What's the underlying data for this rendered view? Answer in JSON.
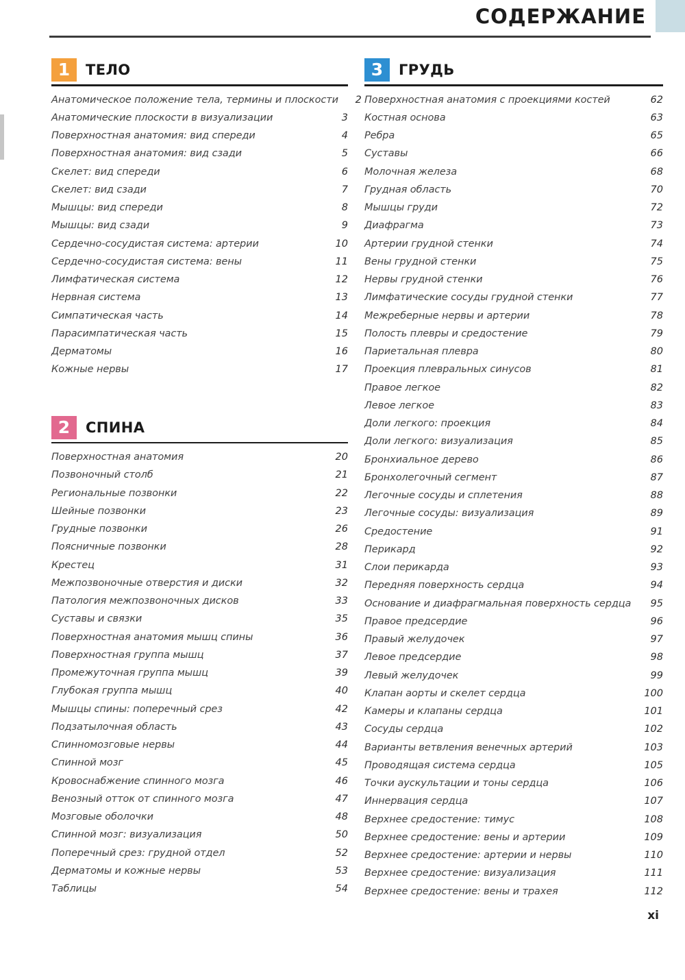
{
  "page": {
    "title": "СОДЕРЖАНИЕ",
    "folio": "xi"
  },
  "colors": {
    "corner_block": "#c9dde4",
    "section1_badge": "#f4a03d",
    "section2_badge": "#e2698f",
    "section3_badge": "#2d8fd2"
  },
  "sections": [
    {
      "number": "1",
      "title": "ТЕЛО",
      "badge_color": "#f4a03d",
      "entries": [
        {
          "label": "Анатомическое положение тела, термины и плоскости",
          "page": "2"
        },
        {
          "label": "Анатомические плоскости в визуализации",
          "page": "3"
        },
        {
          "label": "Поверхностная анатомия: вид спереди",
          "page": "4"
        },
        {
          "label": "Поверхностная анатомия: вид сзади",
          "page": "5"
        },
        {
          "label": "Скелет: вид спереди",
          "page": "6"
        },
        {
          "label": "Скелет: вид сзади",
          "page": "7"
        },
        {
          "label": "Мышцы: вид спереди",
          "page": "8"
        },
        {
          "label": "Мышцы: вид сзади",
          "page": "9"
        },
        {
          "label": "Сердечно-сосудистая система: артерии",
          "page": "10"
        },
        {
          "label": "Сердечно-сосудистая система: вены",
          "page": "11"
        },
        {
          "label": "Лимфатическая система",
          "page": "12"
        },
        {
          "label": "Нервная система",
          "page": "13"
        },
        {
          "label": "Симпатическая часть",
          "page": "14"
        },
        {
          "label": "Парасимпатическая часть",
          "page": "15"
        },
        {
          "label": "Дерматомы",
          "page": "16"
        },
        {
          "label": "Кожные нервы",
          "page": "17"
        }
      ]
    },
    {
      "number": "2",
      "title": "СПИНА",
      "badge_color": "#e2698f",
      "entries": [
        {
          "label": "Поверхностная анатомия",
          "page": "20"
        },
        {
          "label": "Позвоночный столб",
          "page": "21"
        },
        {
          "label": "Региональные позвонки",
          "page": "22"
        },
        {
          "label": "Шейные позвонки",
          "page": "23"
        },
        {
          "label": "Грудные позвонки",
          "page": "26"
        },
        {
          "label": "Поясничные позвонки",
          "page": "28"
        },
        {
          "label": "Крестец",
          "page": "31"
        },
        {
          "label": "Межпозвоночные отверстия и диски",
          "page": "32"
        },
        {
          "label": "Патология межпозвоночных дисков",
          "page": "33"
        },
        {
          "label": "Суставы и связки",
          "page": "35"
        },
        {
          "label": "Поверхностная анатомия мышц спины",
          "page": "36"
        },
        {
          "label": "Поверхностная группа мышц",
          "page": "37"
        },
        {
          "label": "Промежуточная группа мышц",
          "page": "39"
        },
        {
          "label": "Глубокая группа мышц",
          "page": "40"
        },
        {
          "label": "Мышцы спины: поперечный срез",
          "page": "42"
        },
        {
          "label": "Подзатылочная область",
          "page": "43"
        },
        {
          "label": "Спинномозговые нервы",
          "page": "44"
        },
        {
          "label": "Спинной мозг",
          "page": "45"
        },
        {
          "label": "Кровоснабжение спинного мозга",
          "page": "46"
        },
        {
          "label": "Венозный отток от спинного мозга",
          "page": "47"
        },
        {
          "label": "Мозговые оболочки",
          "page": "48"
        },
        {
          "label": "Спинной мозг: визуализация",
          "page": "50"
        },
        {
          "label": "Поперечный срез: грудной отдел",
          "page": "52"
        },
        {
          "label": "Дерматомы и кожные нервы",
          "page": "53"
        },
        {
          "label": "Таблицы",
          "page": "54"
        }
      ]
    },
    {
      "number": "3",
      "title": "ГРУДЬ",
      "badge_color": "#2d8fd2",
      "entries": [
        {
          "label": "Поверхностная анатомия с проекциями костей",
          "page": "62"
        },
        {
          "label": "Костная основа",
          "page": "63"
        },
        {
          "label": "Ребра",
          "page": "65"
        },
        {
          "label": "Суставы",
          "page": "66"
        },
        {
          "label": "Молочная железа",
          "page": "68"
        },
        {
          "label": "Грудная область",
          "page": "70"
        },
        {
          "label": "Мышцы груди",
          "page": "72"
        },
        {
          "label": "Диафрагма",
          "page": "73"
        },
        {
          "label": "Артерии грудной стенки",
          "page": "74"
        },
        {
          "label": "Вены грудной стенки",
          "page": "75"
        },
        {
          "label": "Нервы грудной стенки",
          "page": "76"
        },
        {
          "label": "Лимфатические сосуды грудной стенки",
          "page": "77"
        },
        {
          "label": "Межреберные нервы и артерии",
          "page": "78"
        },
        {
          "label": "Полость плевры и средостение",
          "page": "79"
        },
        {
          "label": "Париетальная плевра",
          "page": "80"
        },
        {
          "label": "Проекция плевральных синусов",
          "page": "81"
        },
        {
          "label": "Правое легкое",
          "page": "82"
        },
        {
          "label": "Левое легкое",
          "page": "83"
        },
        {
          "label": "Доли легкого: проекция",
          "page": "84"
        },
        {
          "label": "Доли легкого: визуализация",
          "page": "85"
        },
        {
          "label": "Бронхиальное дерево",
          "page": "86"
        },
        {
          "label": "Бронхолегочный сегмент",
          "page": "87"
        },
        {
          "label": "Легочные сосуды и сплетения",
          "page": "88"
        },
        {
          "label": "Легочные сосуды: визуализация",
          "page": "89"
        },
        {
          "label": "Средостение",
          "page": "91"
        },
        {
          "label": "Перикард",
          "page": "92"
        },
        {
          "label": "Слои перикарда",
          "page": "93"
        },
        {
          "label": "Передняя поверхность сердца",
          "page": "94"
        },
        {
          "label": "Основание и диафрагмальная поверхность сердца",
          "page": "95"
        },
        {
          "label": "Правое предсердие",
          "page": "96"
        },
        {
          "label": "Правый желудочек",
          "page": "97"
        },
        {
          "label": "Левое предсердие",
          "page": "98"
        },
        {
          "label": "Левый желудочек",
          "page": "99"
        },
        {
          "label": "Клапан аорты и скелет сердца",
          "page": "100"
        },
        {
          "label": "Камеры и клапаны сердца",
          "page": "101"
        },
        {
          "label": "Сосуды сердца",
          "page": "102"
        },
        {
          "label": "Варианты ветвления венечных артерий",
          "page": "103"
        },
        {
          "label": "Проводящая система сердца",
          "page": "105"
        },
        {
          "label": "Точки аускультации и тоны сердца",
          "page": "106"
        },
        {
          "label": "Иннервация сердца",
          "page": "107"
        },
        {
          "label": "Верхнее средостение: тимус",
          "page": "108"
        },
        {
          "label": "Верхнее средостение: вены и артерии",
          "page": "109"
        },
        {
          "label": "Верхнее средостение: артерии и нервы",
          "page": "110"
        },
        {
          "label": "Верхнее средостение: визуализация",
          "page": "111"
        },
        {
          "label": "Верхнее средостение: вены и трахея",
          "page": "112"
        }
      ]
    }
  ]
}
